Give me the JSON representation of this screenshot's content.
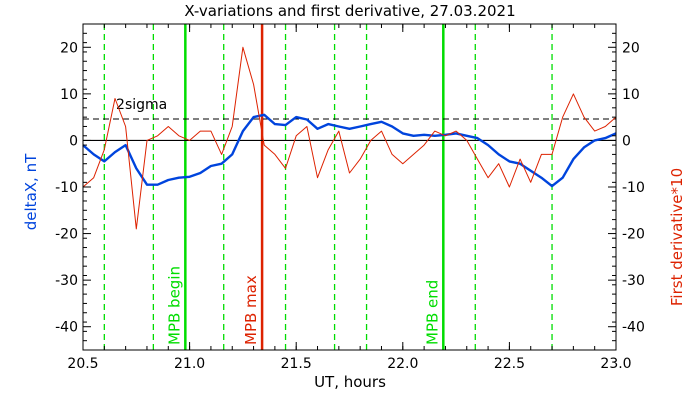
{
  "chart_data": {
    "type": "line",
    "title": "X-variations and first derivative, 27.03.2021",
    "xlabel": "UT, hours",
    "ylabel_left": "deltaX, nT",
    "ylabel_right": "First derivative*10",
    "xlim": [
      20.5,
      23.0
    ],
    "ylim": [
      -45,
      25
    ],
    "xticks": [
      "20.5",
      "21.0",
      "21.5",
      "22.0",
      "22.5",
      "23.0"
    ],
    "yticks": [
      "20",
      "10",
      "0",
      "-10",
      "-20",
      "-30",
      "-40"
    ],
    "threshold": {
      "label": "2sigma",
      "value": 4.6
    },
    "zero_line": 0,
    "vertical_markers": [
      {
        "x": 20.6,
        "style": "dashed",
        "color": "#00dd00",
        "label": ""
      },
      {
        "x": 20.83,
        "style": "dashed",
        "color": "#00dd00",
        "label": ""
      },
      {
        "x": 20.98,
        "style": "solid",
        "color": "#00dd00",
        "label": "MPB begin"
      },
      {
        "x": 21.16,
        "style": "dashed",
        "color": "#00dd00",
        "label": ""
      },
      {
        "x": 21.34,
        "style": "solid",
        "color": "#dd2200",
        "label": "MPB max"
      },
      {
        "x": 21.45,
        "style": "dashed",
        "color": "#00dd00",
        "label": ""
      },
      {
        "x": 21.68,
        "style": "dashed",
        "color": "#00dd00",
        "label": ""
      },
      {
        "x": 21.83,
        "style": "dashed",
        "color": "#00dd00",
        "label": ""
      },
      {
        "x": 22.19,
        "style": "solid",
        "color": "#00dd00",
        "label": "MPB end"
      },
      {
        "x": 22.34,
        "style": "dashed",
        "color": "#00dd00",
        "label": ""
      },
      {
        "x": 22.7,
        "style": "dashed",
        "color": "#00dd00",
        "label": ""
      }
    ],
    "series": [
      {
        "color": "#0044dd",
        "x": [
          20.5,
          20.55,
          20.6,
          20.65,
          20.7,
          20.75,
          20.8,
          20.85,
          20.9,
          20.95,
          21.0,
          21.05,
          21.1,
          21.15,
          21.2,
          21.25,
          21.3,
          21.35,
          21.4,
          21.45,
          21.5,
          21.55,
          21.6,
          21.65,
          21.7,
          21.75,
          21.8,
          21.85,
          21.9,
          21.95,
          22.0,
          22.05,
          22.1,
          22.15,
          22.2,
          22.25,
          22.3,
          22.35,
          22.4,
          22.45,
          22.5,
          22.55,
          22.6,
          22.65,
          22.7,
          22.75,
          22.8,
          22.85,
          22.9,
          22.95,
          23.0
        ],
        "values": [
          -1,
          -3,
          -4.5,
          -2.5,
          -1,
          -6,
          -9.5,
          -9.5,
          -8.5,
          -8,
          -7.8,
          -7,
          -5.5,
          -5,
          -3,
          2,
          5,
          5.5,
          3.5,
          3.3,
          5,
          4.5,
          2.5,
          3.5,
          3,
          2.5,
          3,
          3.5,
          4,
          3,
          1.5,
          1,
          1.2,
          1,
          1.2,
          1.5,
          1,
          0.5,
          -1,
          -3,
          -4.5,
          -5,
          -6.5,
          -8,
          -9.8,
          -8,
          -4,
          -1.5,
          0,
          0.5,
          1.5
        ]
      },
      {
        "color": "#dd2200",
        "x": [
          20.5,
          20.55,
          20.6,
          20.65,
          20.7,
          20.75,
          20.8,
          20.85,
          20.9,
          20.95,
          21.0,
          21.05,
          21.1,
          21.15,
          21.2,
          21.25,
          21.3,
          21.35,
          21.4,
          21.45,
          21.5,
          21.55,
          21.6,
          21.65,
          21.7,
          21.75,
          21.8,
          21.85,
          21.9,
          21.95,
          22.0,
          22.05,
          22.1,
          22.15,
          22.2,
          22.25,
          22.3,
          22.35,
          22.4,
          22.45,
          22.5,
          22.55,
          22.6,
          22.65,
          22.7,
          22.75,
          22.8,
          22.85,
          22.9,
          22.95,
          23.0
        ],
        "values": [
          -10,
          -8,
          -2,
          9,
          3,
          -19,
          0,
          1,
          3,
          1,
          0,
          2,
          2,
          -3,
          3,
          20,
          12,
          -1,
          -3,
          -6,
          1,
          3,
          -8,
          -2,
          2,
          -7,
          -4,
          0,
          2,
          -3,
          -5,
          -3,
          -1,
          2,
          1,
          2,
          0,
          -4,
          -8,
          -5,
          -10,
          -4,
          -9,
          -3,
          -3,
          5,
          10,
          5,
          2,
          3,
          5
        ]
      }
    ]
  }
}
